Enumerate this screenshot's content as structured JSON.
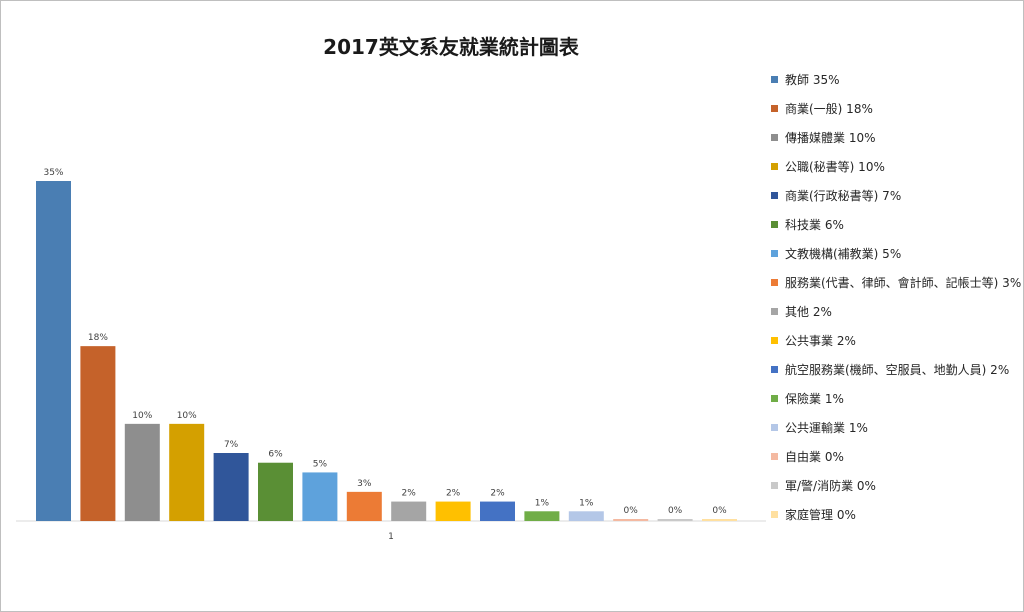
{
  "chart_data": {
    "type": "bar",
    "title": "2017英文系友就業統計圖表",
    "categories": [
      "1"
    ],
    "ylim": [
      0,
      0.36
    ],
    "grid": false,
    "legend_position": "right",
    "series": [
      {
        "name": "教師 35%",
        "value": 0.35,
        "label": "35%",
        "color": "#4a7eb3"
      },
      {
        "name": "商業(一般)  18%",
        "value": 0.18,
        "label": "18%",
        "color": "#c5622a"
      },
      {
        "name": "傳播媒體業  10%",
        "value": 0.1,
        "label": "10%",
        "color": "#8e8e8e"
      },
      {
        "name": "公職(秘書等)  10%",
        "value": 0.1,
        "label": "10%",
        "color": "#d4a000"
      },
      {
        "name": "商業(行政秘書等)  7%",
        "value": 0.07,
        "label": "7%",
        "color": "#30569a"
      },
      {
        "name": "科技業 6%",
        "value": 0.06,
        "label": "6%",
        "color": "#5a8f35"
      },
      {
        "name": "文教機構(補教業)  5%",
        "value": 0.05,
        "label": "5%",
        "color": "#5ea2dc"
      },
      {
        "name": "服務業(代書、律師、會計師、記帳士等)  3%",
        "value": 0.03,
        "label": "3%",
        "color": "#ec7b35"
      },
      {
        "name": "其他  2%",
        "value": 0.02,
        "label": "2%",
        "color": "#a5a5a5"
      },
      {
        "name": "公共事業  2%",
        "value": 0.02,
        "label": "2%",
        "color": "#ffc000"
      },
      {
        "name": "航空服務業(機師、空服員、地勤人員)  2%",
        "value": 0.02,
        "label": "2%",
        "color": "#4472c4"
      },
      {
        "name": "保險業  1%",
        "value": 0.01,
        "label": "1%",
        "color": "#70ad47"
      },
      {
        "name": "公共運輸業  1%",
        "value": 0.01,
        "label": "1%",
        "color": "#b4c7e7"
      },
      {
        "name": "自由業  0%",
        "value": 0.002,
        "label": "0%",
        "color": "#f4b9a1"
      },
      {
        "name": "軍/警/消防業   0%",
        "value": 0.002,
        "label": "0%",
        "color": "#c9c9c9"
      },
      {
        "name": "家庭管理  0%",
        "value": 0.002,
        "label": "0%",
        "color": "#ffe0a0"
      }
    ]
  }
}
